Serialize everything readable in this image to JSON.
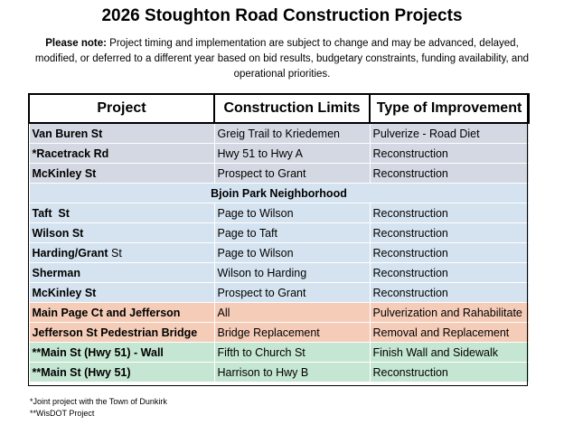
{
  "title": "2026 Stoughton Road Construction Projects",
  "note": {
    "label": "Please note:",
    "text": " Project timing and implementation are subject to change and may be advanced, delayed, modified, or deferred to a different year based on bid results, budgetary constraints, funding availability, and operational priorities."
  },
  "table": {
    "headers": [
      "Project",
      "Construction Limits",
      "Type of Improvement"
    ],
    "rows": [
      {
        "project": "Van Buren St",
        "limits": "Greig Trail to Kriedemen",
        "improvement": "Pulverize - Road Diet"
      },
      {
        "project": "*Racetrack Rd",
        "limits": "Hwy 51 to Hwy A",
        "improvement": "Reconstruction"
      },
      {
        "project": "McKinley St",
        "limits": "Prospect to Grant",
        "improvement": "Reconstruction"
      },
      {
        "section": "Bjoin Park Neighborhood"
      },
      {
        "project": "Taft  St",
        "limits": "Page to Wilson",
        "improvement": "Reconstruction"
      },
      {
        "project": "Wilson St",
        "limits": "Page to Taft",
        "improvement": "Reconstruction"
      },
      {
        "project_bold": "Harding/Grant",
        "project_plain": " St",
        "limits": "Page to Wilson",
        "improvement": "Reconstruction"
      },
      {
        "project": "Sherman",
        "limits": "Wilson to Harding",
        "improvement": "Reconstruction"
      },
      {
        "project": "McKinley St",
        "limits": "Prospect to Grant",
        "improvement": "Reconstruction"
      },
      {
        "project": "Main Page Ct and Jefferson",
        "limits": "All",
        "improvement": "Pulverization and Rahabilitate"
      },
      {
        "project": "Jefferson St Pedestrian Bridge",
        "limits": "Bridge Replacement",
        "improvement": "Removal and Replacement"
      },
      {
        "project": "**Main St (Hwy 51) - Wall",
        "limits": "Fifth to Church St",
        "improvement": "Finish Wall and Sidewalk"
      },
      {
        "project": "**Main St (Hwy 51)",
        "limits": "Harrison to Hwy B",
        "improvement": "Reconstruction"
      }
    ]
  },
  "footnotes": [
    "*Joint project with the Town of Dunkirk",
    "**WisDOT Project"
  ],
  "colors": {
    "gray_group": "#d4d8e2",
    "neighborhood_group": "#d5e3f0",
    "downtown_group": "#f5ccb8",
    "wisdot_group": "#c5e6d2"
  }
}
